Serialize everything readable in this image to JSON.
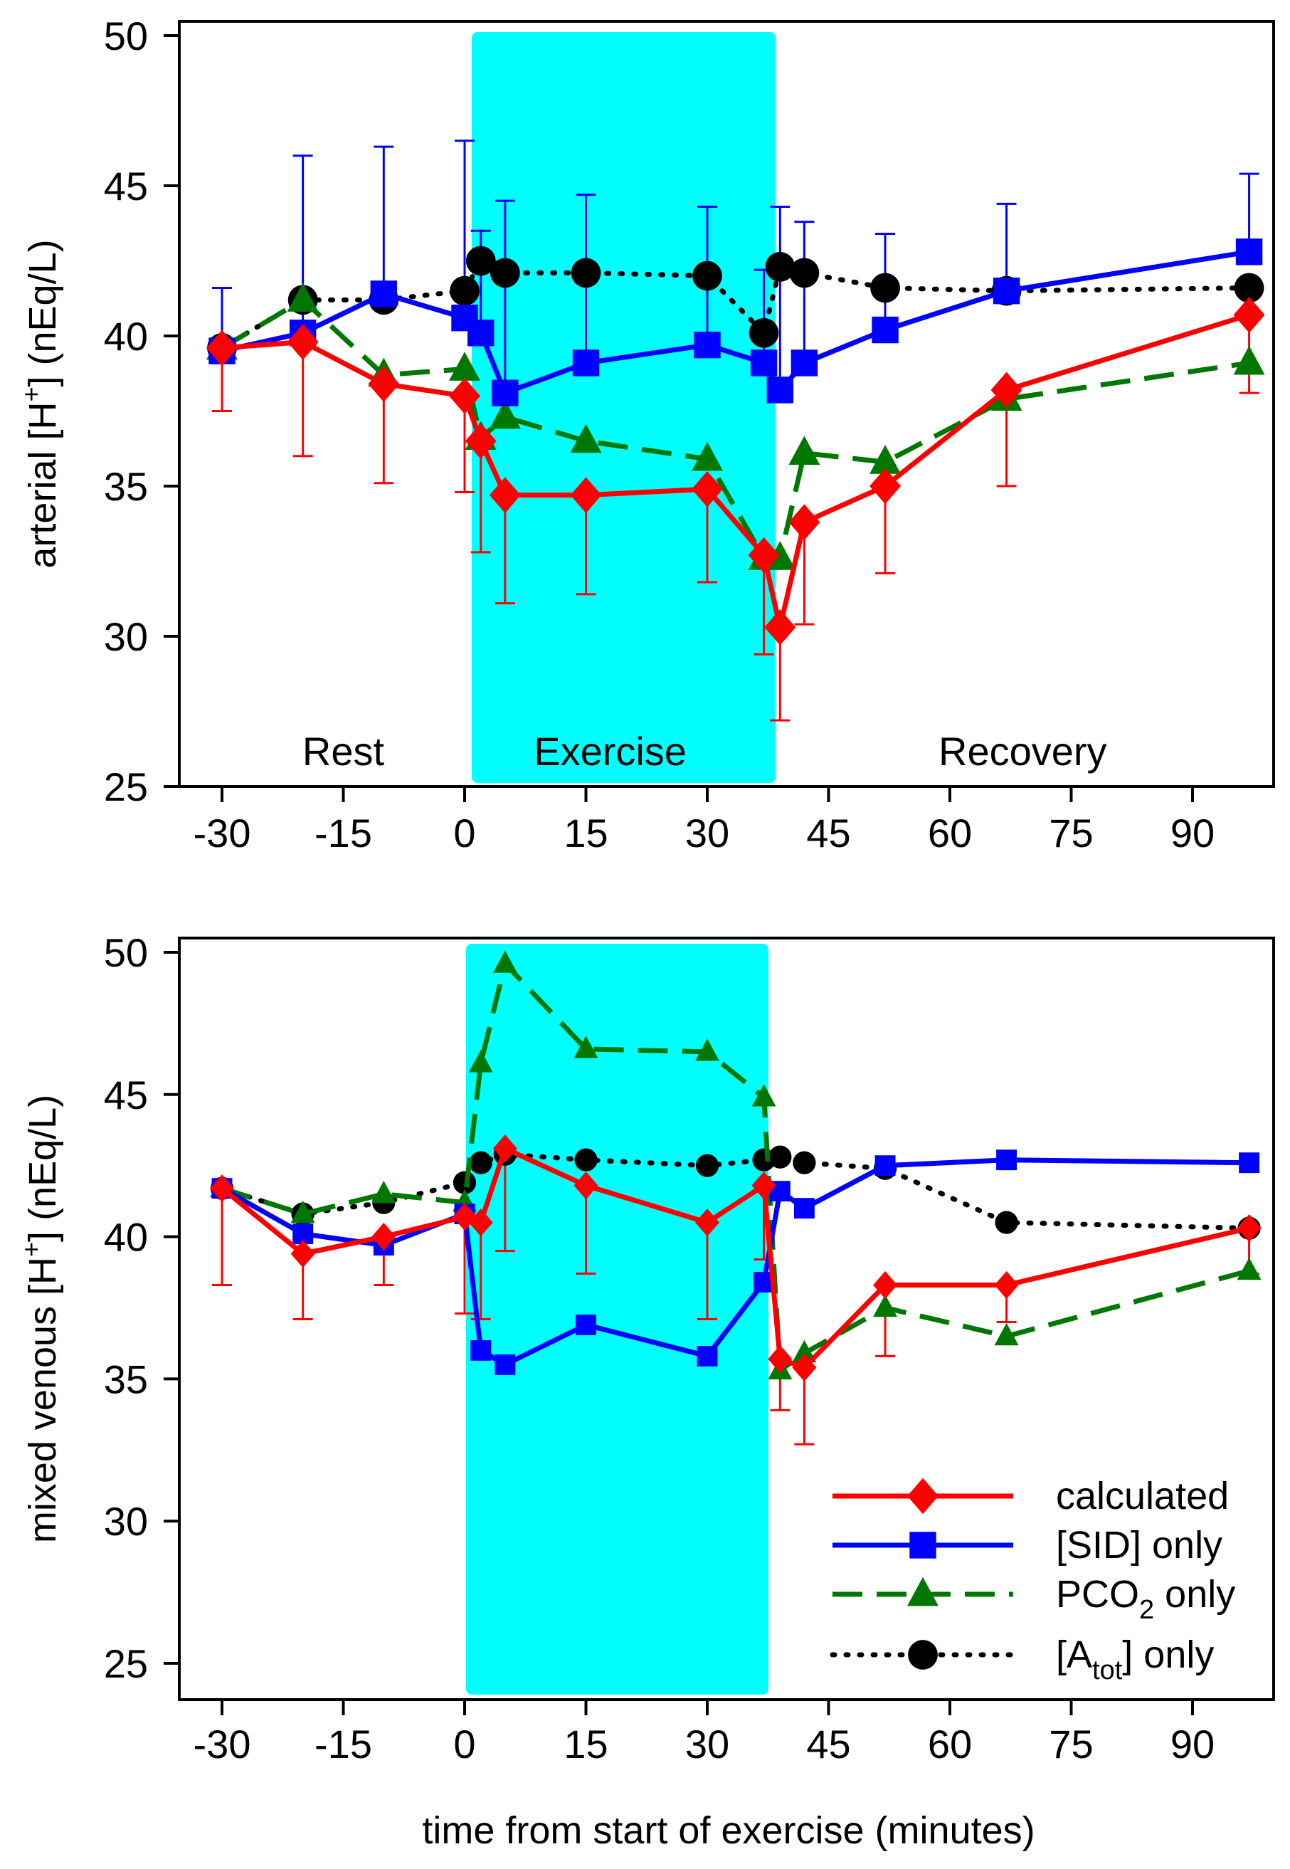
{
  "chart_data": [
    {
      "type": "line",
      "panel": "top",
      "ylabel": {
        "pre": "arterial [H",
        "sup": "+",
        "post": "] (nEq/L)"
      },
      "xlabel": "",
      "xlim": [
        -35,
        100
      ],
      "ylim": [
        25,
        50
      ],
      "xticks": [
        -30,
        -15,
        0,
        15,
        30,
        45,
        60,
        75,
        90
      ],
      "yticks": [
        25,
        30,
        35,
        40,
        45,
        50
      ],
      "shaded_region": {
        "x": [
          0.5,
          38
        ],
        "color": "#00ffff"
      },
      "phase_labels": [
        {
          "text": "Rest",
          "x": -15
        },
        {
          "text": "Exercise",
          "x": 18
        },
        {
          "text": "Recovery",
          "x": 69
        }
      ],
      "x": [
        -30,
        -20,
        -10,
        0,
        2,
        5,
        15,
        30,
        37,
        39,
        42,
        52,
        67,
        97
      ],
      "series": [
        {
          "name": "calculated",
          "color": "#ff0000",
          "marker": "diamond",
          "dash": "solid",
          "values": [
            39.6,
            39.8,
            38.4,
            38.0,
            36.5,
            34.7,
            34.7,
            34.9,
            32.7,
            30.3,
            33.8,
            35.0,
            38.2,
            40.7
          ],
          "error_end": [
            37.5,
            36.0,
            35.1,
            34.8,
            32.8,
            31.1,
            31.4,
            31.8,
            29.4,
            27.2,
            30.4,
            32.1,
            35.0,
            38.1
          ]
        },
        {
          "name": "[SID] only",
          "color": "#0000ff",
          "marker": "square",
          "dash": "solid",
          "values": [
            39.5,
            40.1,
            41.4,
            40.6,
            40.1,
            38.1,
            39.1,
            39.7,
            39.1,
            38.2,
            39.1,
            40.2,
            41.5,
            42.8
          ],
          "error_end": [
            41.6,
            46.0,
            46.3,
            46.5,
            43.5,
            44.5,
            44.7,
            44.3,
            42.2,
            44.3,
            43.8,
            43.4,
            44.4,
            45.4
          ]
        },
        {
          "name": "PCO2 only",
          "color": "#007700",
          "marker": "triangle",
          "dash": "dashed",
          "values": [
            39.6,
            41.2,
            38.7,
            38.9,
            36.6,
            37.3,
            36.5,
            35.9,
            32.6,
            32.6,
            36.1,
            35.8,
            37.9,
            39.1
          ]
        },
        {
          "name": "[Atot] only",
          "color": "#000000",
          "marker": "circle",
          "dash": "dotted",
          "values": [
            39.6,
            41.2,
            41.2,
            41.5,
            42.5,
            42.1,
            42.1,
            42.0,
            40.1,
            42.3,
            42.1,
            41.6,
            41.5,
            41.6
          ]
        }
      ]
    },
    {
      "type": "line",
      "panel": "bottom",
      "ylabel": {
        "pre": "mixed venous [H",
        "sup": "+",
        "post": "] (nEq/L)"
      },
      "xlabel": "time from start of exercise (minutes)",
      "xlim": [
        -35,
        100
      ],
      "ylim": [
        25,
        50
      ],
      "xticks": [
        -30,
        -15,
        0,
        15,
        30,
        45,
        60,
        75,
        90
      ],
      "yticks": [
        25,
        30,
        35,
        40,
        45,
        50
      ],
      "shaded_region": {
        "x": [
          0,
          37.5
        ],
        "color": "#00ffff"
      },
      "x": [
        -30,
        -20,
        -10,
        0,
        2,
        5,
        15,
        30,
        37,
        39,
        42,
        52,
        67,
        97
      ],
      "series": [
        {
          "name": "calculated",
          "color": "#ff0000",
          "marker": "diamond",
          "dash": "solid",
          "values": [
            41.7,
            39.4,
            40.0,
            40.7,
            40.5,
            43.1,
            41.8,
            40.5,
            41.8,
            35.7,
            35.4,
            38.3,
            38.3,
            40.3
          ],
          "error_end": [
            38.3,
            37.1,
            38.3,
            37.3,
            37.1,
            39.5,
            38.7,
            37.1,
            39.2,
            33.9,
            32.7,
            35.8,
            37.0,
            38.7
          ]
        },
        {
          "name": "[SID] only",
          "color": "#0000ff",
          "marker": "square",
          "dash": "solid",
          "values": [
            41.7,
            40.1,
            39.7,
            40.8,
            36.0,
            35.5,
            36.9,
            35.8,
            38.4,
            41.6,
            41.0,
            42.5,
            42.7,
            42.6
          ]
        },
        {
          "name": "PCO2 only",
          "color": "#007700",
          "marker": "triangle",
          "dash": "dashed",
          "values": [
            41.7,
            40.8,
            41.5,
            41.2,
            46.1,
            49.6,
            46.6,
            46.5,
            44.9,
            35.3,
            35.9,
            37.5,
            36.5,
            38.8
          ]
        },
        {
          "name": "[Atot] only",
          "color": "#000000",
          "marker": "circle",
          "dash": "dotted",
          "values": [
            41.7,
            40.8,
            41.2,
            41.9,
            42.6,
            42.9,
            42.7,
            42.5,
            42.7,
            42.8,
            42.6,
            42.4,
            40.5,
            40.3
          ]
        }
      ],
      "legend": {
        "placement": "bottom-right",
        "entries": [
          {
            "pre": "calculated",
            "sub": "",
            "post": ""
          },
          {
            "pre": "[SID] only",
            "sub": "",
            "post": ""
          },
          {
            "pre": "PCO",
            "sub": "2",
            "post": " only"
          },
          {
            "pre": "[A",
            "sub": "tot",
            "post": "] only"
          }
        ]
      }
    }
  ]
}
